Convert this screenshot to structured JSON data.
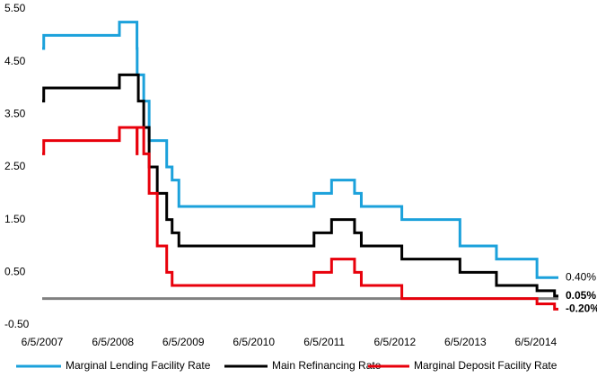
{
  "chart_data": {
    "type": "step-line",
    "x": [
      "2007-06-05",
      "2007-06-13",
      "2008-07-09",
      "2008-10-08",
      "2008-10-09",
      "2008-10-15",
      "2008-11-12",
      "2008-12-10",
      "2009-01-21",
      "2009-03-11",
      "2009-04-08",
      "2009-05-13",
      "2011-04-13",
      "2011-07-13",
      "2011-11-09",
      "2011-12-14",
      "2012-07-11",
      "2013-05-08",
      "2013-11-13",
      "2014-06-11",
      "2014-09-10",
      "2014-09-30"
    ],
    "series": [
      {
        "name": "Marginal Lending Facility Rate",
        "color": "#1ba1db",
        "values": [
          4.75,
          5.0,
          5.25,
          4.75,
          4.25,
          4.25,
          3.75,
          3.0,
          3.0,
          2.5,
          2.25,
          1.75,
          2.0,
          2.25,
          2.0,
          1.75,
          1.5,
          1.0,
          0.75,
          0.4,
          0.4,
          0.4
        ],
        "end_label": "0.40%"
      },
      {
        "name": "Main Refinancing Rate",
        "color": "#000000",
        "values": [
          3.75,
          4.0,
          4.25,
          4.25,
          4.25,
          3.75,
          3.25,
          2.5,
          2.0,
          1.5,
          1.25,
          1.0,
          1.25,
          1.5,
          1.25,
          1.0,
          0.75,
          0.5,
          0.25,
          0.15,
          0.05,
          0.05
        ],
        "end_label": "0.05%"
      },
      {
        "name": "Marginal Deposit Facility Rate",
        "color": "#e8000b",
        "values": [
          2.75,
          3.0,
          3.25,
          2.75,
          3.25,
          3.25,
          2.75,
          2.0,
          1.0,
          0.5,
          0.25,
          0.25,
          0.5,
          0.75,
          0.5,
          0.25,
          0.0,
          0.0,
          0.0,
          -0.1,
          -0.2,
          -0.2
        ],
        "end_label": "-0.20%"
      }
    ],
    "xlim": [
      "2007-06-05",
      "2014-09-30"
    ],
    "xticks": [
      {
        "value": "2007-06-05",
        "label": "6/5/2007"
      },
      {
        "value": "2008-06-05",
        "label": "6/5/2008"
      },
      {
        "value": "2009-06-05",
        "label": "6/5/2009"
      },
      {
        "value": "2010-06-05",
        "label": "6/5/2010"
      },
      {
        "value": "2011-06-05",
        "label": "6/5/2011"
      },
      {
        "value": "2012-06-05",
        "label": "6/5/2012"
      },
      {
        "value": "2013-06-05",
        "label": "6/5/2013"
      },
      {
        "value": "2014-06-05",
        "label": "6/5/2014"
      }
    ],
    "ylim": [
      -0.5,
      5.5
    ],
    "yticks": [
      {
        "value": 5.5,
        "label": "5.50"
      },
      {
        "value": 4.5,
        "label": "4.50"
      },
      {
        "value": 3.5,
        "label": "3.50"
      },
      {
        "value": 2.5,
        "label": "2.50"
      },
      {
        "value": 1.5,
        "label": "1.50"
      },
      {
        "value": 0.5,
        "label": "0.50"
      },
      {
        "value": -0.5,
        "label": "-0.50"
      }
    ],
    "legend": "bottom"
  }
}
